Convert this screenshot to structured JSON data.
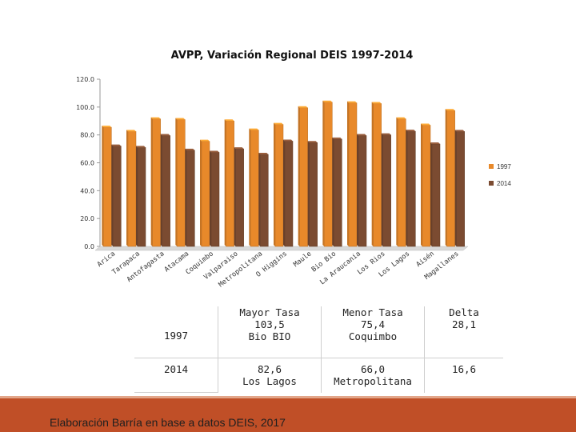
{
  "chart_data": {
    "type": "bar",
    "title": "AVPP,  Variación Regional DEIS 1997-2014",
    "ylim": [
      0,
      120
    ],
    "yticks": [
      "120.0",
      "100.0",
      "80.0",
      "60.0",
      "40.0",
      "20.0",
      "0.0"
    ],
    "ytick_values": [
      120,
      100,
      80,
      60,
      40,
      20,
      0
    ],
    "categories": [
      "Arica",
      "Tarapaca",
      "Antofagasta",
      "Atacama",
      "Coquimbo",
      "Valparaiso",
      "Metropolitana",
      "O Higgins",
      "Maule",
      "Bio Bio",
      "La Araucania",
      "Los Rios",
      "Los Lagos",
      "Aisén",
      "Magallanes"
    ],
    "series": [
      {
        "name": "1997",
        "color": "#e8892a",
        "values": [
          85.5,
          82.5,
          91.5,
          91.0,
          75.4,
          90.0,
          83.5,
          87.5,
          99.5,
          103.5,
          103.0,
          102.5,
          91.5,
          87.0,
          97.5
        ]
      },
      {
        "name": "2014",
        "color": "#7b4b31",
        "values": [
          72.0,
          71.0,
          79.5,
          69.0,
          67.5,
          70.0,
          66.0,
          75.5,
          74.5,
          77.0,
          79.5,
          80.0,
          82.6,
          73.5,
          82.5
        ]
      }
    ],
    "legend_position": "right"
  },
  "table": {
    "rows": [
      {
        "label": "1997",
        "mayor": [
          "Mayor Tasa",
          "103,5",
          "Bio BIO"
        ],
        "menor": [
          "Menor Tasa",
          "75,4",
          "Coquimbo"
        ],
        "delta": [
          "Delta",
          "28,1"
        ]
      },
      {
        "label": "2014",
        "mayor": [
          "82,6",
          "Los Lagos"
        ],
        "menor": [
          "66,0",
          "Metropolitana"
        ],
        "delta": [
          "16,6"
        ]
      }
    ]
  },
  "footer": {
    "source": "Elaboración Barría en base a datos DEIS, 2017"
  }
}
